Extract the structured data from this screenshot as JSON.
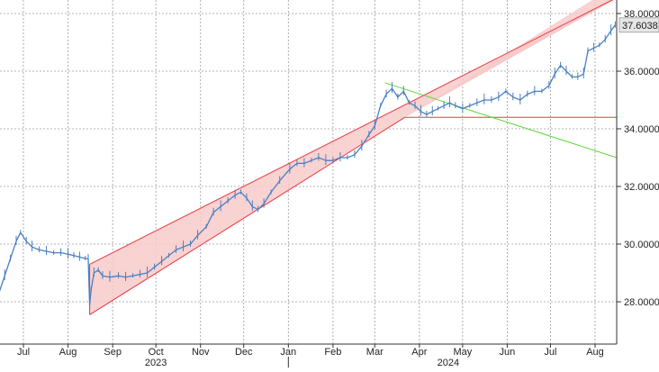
{
  "chart_data": {
    "type": "line",
    "title": "",
    "xlabel": "",
    "ylabel": "",
    "ylim": [
      26.5,
      38.2
    ],
    "y_ticks": [
      "28.0000",
      "30.0000",
      "32.0000",
      "34.0000",
      "36.0000",
      "38.0000"
    ],
    "y_axis_side": "right",
    "grid": true,
    "last_value_label": "37.6038",
    "x_month_ticks": [
      {
        "label": "Jul",
        "date": "2023-07-01"
      },
      {
        "label": "Aug",
        "date": "2023-08-01"
      },
      {
        "label": "Sep",
        "date": "2023-09-01"
      },
      {
        "label": "Oct",
        "date": "2023-10-01"
      },
      {
        "label": "Nov",
        "date": "2023-11-01"
      },
      {
        "label": "Dec",
        "date": "2023-12-01"
      },
      {
        "label": "Jan",
        "date": "2024-01-01"
      },
      {
        "label": "Feb",
        "date": "2024-02-01"
      },
      {
        "label": "Mar",
        "date": "2024-03-01"
      },
      {
        "label": "Apr",
        "date": "2024-04-01"
      },
      {
        "label": "May",
        "date": "2024-05-01"
      },
      {
        "label": "Jun",
        "date": "2024-06-01"
      },
      {
        "label": "Jul",
        "date": "2024-07-01"
      },
      {
        "label": "Aug",
        "date": "2024-08-01"
      }
    ],
    "x_year_labels": [
      {
        "label": "2023",
        "date": "2023-10-01"
      },
      {
        "label": "2024",
        "date": "2024-04-21"
      }
    ],
    "year_divider_date": "2024-01-01",
    "series": [
      {
        "color": "#4a7fc0",
        "points": [
          [
            "2023-06-10",
            27.8
          ],
          [
            "2023-06-14",
            28.3
          ],
          [
            "2023-06-18",
            28.9
          ],
          [
            "2023-06-22",
            29.5
          ],
          [
            "2023-06-26",
            30.1
          ],
          [
            "2023-06-29",
            30.4
          ],
          [
            "2023-07-03",
            30.1
          ],
          [
            "2023-07-07",
            29.9
          ],
          [
            "2023-07-12",
            29.8
          ],
          [
            "2023-07-17",
            29.75
          ],
          [
            "2023-07-22",
            29.7
          ],
          [
            "2023-07-27",
            29.7
          ],
          [
            "2023-08-01",
            29.65
          ],
          [
            "2023-08-05",
            29.6
          ],
          [
            "2023-08-09",
            29.55
          ],
          [
            "2023-08-13",
            29.5
          ],
          [
            "2023-08-15",
            29.5
          ],
          [
            "2023-08-16",
            27.9
          ],
          [
            "2023-08-17",
            28.4
          ],
          [
            "2023-08-19",
            29.0
          ],
          [
            "2023-08-22",
            29.1
          ],
          [
            "2023-08-25",
            28.9
          ],
          [
            "2023-08-30",
            28.85
          ],
          [
            "2023-09-05",
            28.9
          ],
          [
            "2023-09-10",
            28.85
          ],
          [
            "2023-09-15",
            28.9
          ],
          [
            "2023-09-20",
            28.95
          ],
          [
            "2023-09-25",
            29.0
          ],
          [
            "2023-09-30",
            29.2
          ],
          [
            "2023-10-05",
            29.4
          ],
          [
            "2023-10-10",
            29.6
          ],
          [
            "2023-10-15",
            29.8
          ],
          [
            "2023-10-20",
            29.9
          ],
          [
            "2023-10-25",
            30.0
          ],
          [
            "2023-10-30",
            30.3
          ],
          [
            "2023-11-05",
            30.6
          ],
          [
            "2023-11-10",
            31.1
          ],
          [
            "2023-11-15",
            31.3
          ],
          [
            "2023-11-20",
            31.5
          ],
          [
            "2023-11-25",
            31.7
          ],
          [
            "2023-11-29",
            31.8
          ],
          [
            "2023-12-03",
            31.6
          ],
          [
            "2023-12-07",
            31.3
          ],
          [
            "2023-12-11",
            31.2
          ],
          [
            "2023-12-15",
            31.4
          ],
          [
            "2023-12-20",
            31.8
          ],
          [
            "2023-12-26",
            32.2
          ],
          [
            "2024-01-02",
            32.6
          ],
          [
            "2024-01-07",
            32.8
          ],
          [
            "2024-01-12",
            32.8
          ],
          [
            "2024-01-17",
            32.9
          ],
          [
            "2024-01-22",
            33.0
          ],
          [
            "2024-01-27",
            32.9
          ],
          [
            "2024-02-01",
            32.9
          ],
          [
            "2024-02-06",
            33.0
          ],
          [
            "2024-02-11",
            33.0
          ],
          [
            "2024-02-16",
            33.1
          ],
          [
            "2024-02-21",
            33.4
          ],
          [
            "2024-02-26",
            33.8
          ],
          [
            "2024-03-01",
            34.1
          ],
          [
            "2024-03-05",
            34.8
          ],
          [
            "2024-03-09",
            35.2
          ],
          [
            "2024-03-13",
            35.4
          ],
          [
            "2024-03-17",
            35.1
          ],
          [
            "2024-03-21",
            35.3
          ],
          [
            "2024-03-25",
            34.9
          ],
          [
            "2024-03-29",
            34.8
          ],
          [
            "2024-04-02",
            34.6
          ],
          [
            "2024-04-06",
            34.5
          ],
          [
            "2024-04-10",
            34.6
          ],
          [
            "2024-04-14",
            34.7
          ],
          [
            "2024-04-18",
            34.8
          ],
          [
            "2024-04-22",
            34.9
          ],
          [
            "2024-04-26",
            34.8
          ],
          [
            "2024-05-01",
            34.7
          ],
          [
            "2024-05-06",
            34.8
          ],
          [
            "2024-05-11",
            34.9
          ],
          [
            "2024-05-16",
            35.0
          ],
          [
            "2024-05-21",
            35.0
          ],
          [
            "2024-05-26",
            35.1
          ],
          [
            "2024-05-31",
            35.3
          ],
          [
            "2024-06-05",
            35.1
          ],
          [
            "2024-06-10",
            35.0
          ],
          [
            "2024-06-15",
            35.2
          ],
          [
            "2024-06-20",
            35.3
          ],
          [
            "2024-06-25",
            35.3
          ],
          [
            "2024-06-30",
            35.5
          ],
          [
            "2024-07-04",
            35.9
          ],
          [
            "2024-07-08",
            36.2
          ],
          [
            "2024-07-12",
            36.0
          ],
          [
            "2024-07-16",
            35.8
          ],
          [
            "2024-07-20",
            35.8
          ],
          [
            "2024-07-24",
            35.9
          ],
          [
            "2024-07-27",
            36.7
          ],
          [
            "2024-07-31",
            36.8
          ],
          [
            "2024-08-04",
            36.9
          ],
          [
            "2024-08-08",
            37.1
          ],
          [
            "2024-08-12",
            37.4
          ],
          [
            "2024-08-15",
            37.6
          ]
        ]
      }
    ],
    "annotations": {
      "channel": {
        "fill": "#f8caca",
        "edge_color": "#e8393f",
        "lower": [
          [
            "2023-08-16",
            27.55
          ],
          [
            "2024-03-22",
            34.4
          ]
        ],
        "upper": [
          [
            "2023-08-16",
            29.3
          ],
          [
            "2024-08-26",
            38.8
          ]
        ]
      },
      "trend_line": {
        "color": "#5cd63a",
        "points": [
          [
            "2024-03-08",
            35.6
          ],
          [
            "2024-08-31",
            33.0
          ]
        ]
      },
      "support_line": {
        "color": "#e8393f",
        "points": [
          [
            "2024-03-22",
            34.4
          ],
          [
            "2024-08-31",
            34.4
          ]
        ]
      }
    }
  }
}
